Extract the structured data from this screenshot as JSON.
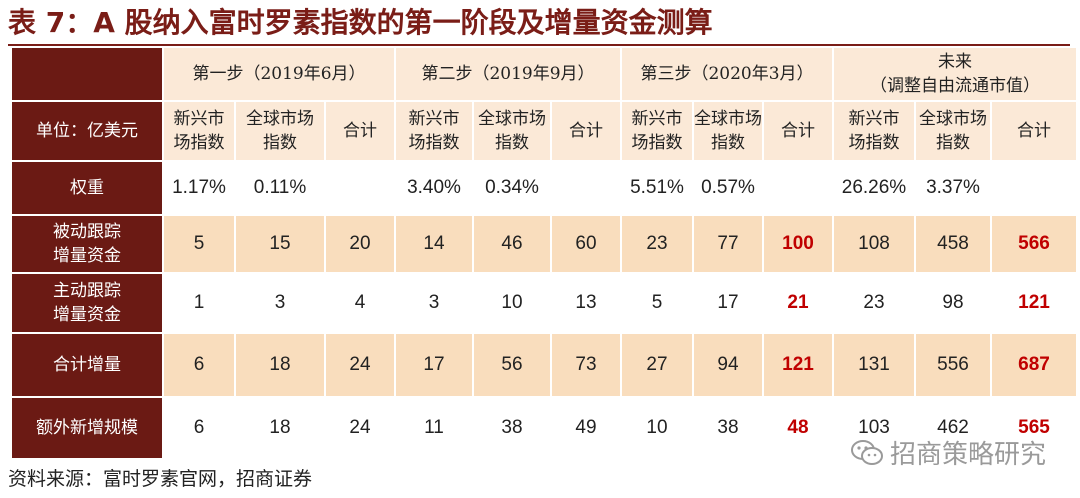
{
  "title": "表 7：A 股纳入富时罗素指数的第一阶段及增量资金测算",
  "header": {
    "periods": [
      {
        "label": "第一步（2019年6月）"
      },
      {
        "label": "第二步（2019年9月）"
      },
      {
        "label": "第三步（2020年3月）"
      },
      {
        "line1": "未来",
        "line2": "（调整自由流通市值）"
      }
    ],
    "unit_label": "单位：亿美元",
    "sub": [
      [
        "新兴市",
        "场指数"
      ],
      [
        "全球市场",
        "指数"
      ],
      [
        "合计"
      ]
    ]
  },
  "rows": [
    {
      "label": [
        "权重"
      ],
      "bg": "wht",
      "values": [
        "1.17%",
        "0.11%",
        "",
        "3.40%",
        "0.34%",
        "",
        "5.51%",
        "0.57%",
        "",
        "26.26%",
        "3.37%",
        ""
      ]
    },
    {
      "label": [
        "被动跟踪",
        "增量资金"
      ],
      "bg": "tan",
      "values": [
        "5",
        "15",
        "20",
        "14",
        "46",
        "60",
        "23",
        "77",
        "100",
        "108",
        "458",
        "566"
      ]
    },
    {
      "label": [
        "主动跟踪",
        "增量资金"
      ],
      "bg": "wht",
      "values": [
        "1",
        "3",
        "4",
        "3",
        "10",
        "13",
        "5",
        "17",
        "21",
        "23",
        "98",
        "121"
      ]
    },
    {
      "label": [
        "合计增量"
      ],
      "bg": "tan",
      "values": [
        "6",
        "18",
        "24",
        "17",
        "56",
        "73",
        "27",
        "94",
        "121",
        "131",
        "556",
        "687"
      ]
    },
    {
      "label": [
        "额外新增规模"
      ],
      "bg": "wht",
      "values": [
        "6",
        "18",
        "24",
        "11",
        "38",
        "49",
        "10",
        "38",
        "48",
        "103",
        "462",
        "565"
      ]
    }
  ],
  "highlight_color": "#c00000",
  "source": "资料来源：富时罗素官网，招商证券",
  "watermark": {
    "icon": "wechat-icon",
    "text": "招商策略研究"
  }
}
